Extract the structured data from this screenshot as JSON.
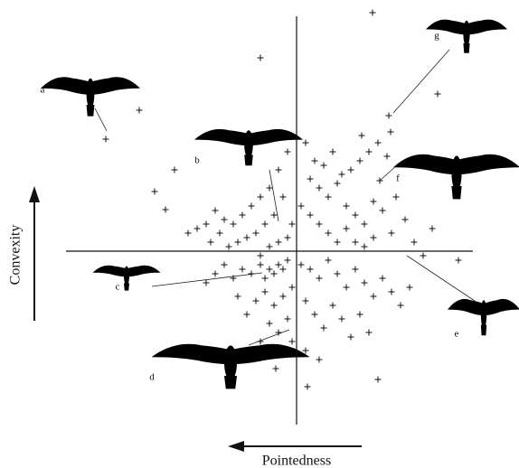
{
  "chart_data": {
    "type": "scatter",
    "xlabel": "Pointedness",
    "ylabel": "Convexity",
    "annotations": [
      "a",
      "b",
      "c",
      "d",
      "e",
      "f",
      "g"
    ],
    "xlim": [
      -255,
      195
    ],
    "ylim": [
      -192,
      265
    ],
    "color": "#111111",
    "x": [
      84,
      -40,
      -174,
      -211,
      102,
      156,
      104,
      72,
      92,
      179,
      12,
      90,
      -23,
      -157,
      -135,
      -145,
      10,
      20,
      30,
      40,
      50,
      60,
      70,
      80,
      90,
      100,
      15,
      25,
      35,
      45,
      55,
      65,
      75,
      85,
      95,
      105,
      110,
      120,
      5,
      15,
      25,
      35,
      45,
      55,
      65,
      75,
      85,
      130,
      140,
      150,
      -10,
      -20,
      -30,
      -40,
      -50,
      -60,
      -70,
      -80,
      -90,
      -100,
      -110,
      -120,
      -15,
      -25,
      -35,
      -45,
      -55,
      -65,
      -75,
      -85,
      -95,
      -5,
      -10,
      -20,
      -30,
      -40,
      -10,
      -15,
      -20,
      -25,
      -30,
      -35,
      -40,
      -50,
      -60,
      -70,
      -80,
      -90,
      -100,
      -5,
      -15,
      -25,
      -35,
      -45,
      -55,
      -65,
      -10,
      -20,
      -5,
      -30,
      -40,
      5,
      15,
      25,
      35,
      45,
      55,
      65,
      75,
      85,
      95,
      105,
      115,
      125,
      10,
      20,
      30,
      40,
      50,
      60,
      70,
      80,
      10,
      25
    ],
    "values": [
      264,
      214,
      156,
      124,
      150,
      174,
      132,
      128,
      78,
      -10,
      -150,
      -142,
      -130,
      66,
      90,
      46,
      120,
      100,
      95,
      110,
      85,
      90,
      100,
      110,
      120,
      105,
      80,
      70,
      60,
      75,
      50,
      40,
      30,
      55,
      45,
      20,
      60,
      35,
      50,
      40,
      30,
      20,
      10,
      25,
      10,
      5,
      15,
      10,
      -5,
      25,
      110,
      90,
      70,
      60,
      50,
      40,
      30,
      35,
      45,
      30,
      25,
      20,
      60,
      40,
      30,
      20,
      15,
      10,
      5,
      20,
      10,
      30,
      15,
      10,
      5,
      -5,
      -10,
      -20,
      -15,
      -25,
      -20,
      -30,
      -15,
      -25,
      -20,
      -30,
      -15,
      -25,
      -35,
      -40,
      -50,
      -60,
      -45,
      -55,
      -70,
      -50,
      -75,
      -90,
      -100,
      -80,
      -100,
      -15,
      -20,
      -30,
      -10,
      -25,
      -40,
      -20,
      -35,
      -50,
      -30,
      -45,
      -60,
      -40,
      -55,
      -70,
      -85,
      -60,
      -75,
      -95,
      -70,
      -90,
      -110,
      -120
    ]
  }
}
